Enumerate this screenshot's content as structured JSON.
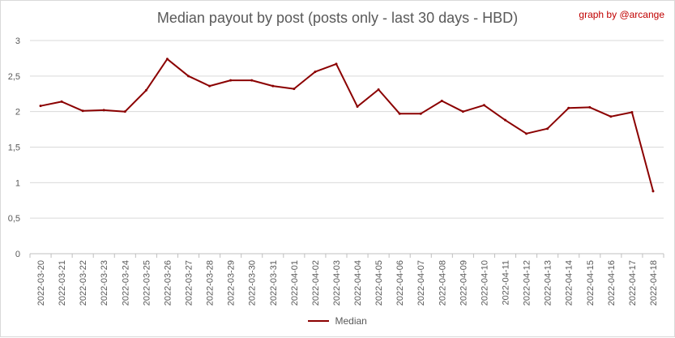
{
  "title": "Median payout by post (posts only - last 30 days - HBD)",
  "credit": "graph by @arcange",
  "colors": {
    "line": "#8b0000",
    "grid": "#d9d9d9",
    "axis": "#bfbfbf",
    "credit": "#c00000"
  },
  "chart_data": {
    "type": "line",
    "title": "Median payout by post (posts only - last 30 days - HBD)",
    "xlabel": "",
    "ylabel": "",
    "ylim": [
      0,
      3
    ],
    "yticks": [
      "0",
      "0,5",
      "1",
      "1,5",
      "2",
      "2,5",
      "3"
    ],
    "ytick_values": [
      0,
      0.5,
      1,
      1.5,
      2,
      2.5,
      3
    ],
    "grid": true,
    "legend": "bottom",
    "categories": [
      "2022-03-20",
      "2022-03-21",
      "2022-03-22",
      "2022-03-23",
      "2022-03-24",
      "2022-03-25",
      "2022-03-26",
      "2022-03-27",
      "2022-03-28",
      "2022-03-29",
      "2022-03-30",
      "2022-03-31",
      "2022-04-01",
      "2022-04-02",
      "2022-04-03",
      "2022-04-04",
      "2022-04-05",
      "2022-04-06",
      "2022-04-07",
      "2022-04-08",
      "2022-04-09",
      "2022-04-10",
      "2022-04-11",
      "2022-04-12",
      "2022-04-13",
      "2022-04-14",
      "2022-04-15",
      "2022-04-16",
      "2022-04-17",
      "2022-04-18"
    ],
    "series": [
      {
        "name": "Median",
        "values": [
          2.08,
          2.14,
          2.01,
          2.02,
          2.0,
          2.3,
          2.74,
          2.5,
          2.36,
          2.44,
          2.44,
          2.36,
          2.32,
          2.56,
          2.67,
          2.07,
          2.31,
          1.97,
          1.97,
          2.15,
          2.0,
          2.09,
          1.88,
          1.69,
          1.76,
          2.05,
          2.06,
          1.93,
          1.99,
          0.88
        ]
      }
    ]
  }
}
